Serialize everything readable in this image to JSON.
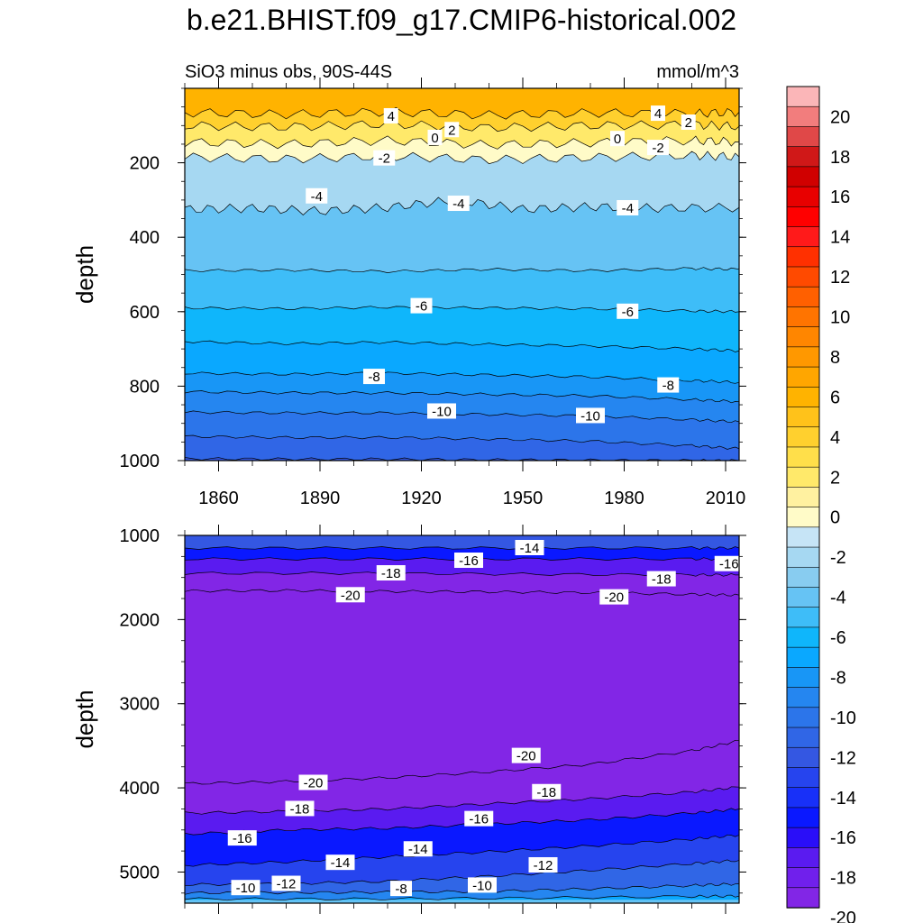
{
  "title": "b.e21.BHIST.f09_g17.CMIP6-historical.002",
  "chart_data": {
    "type": "contour",
    "title": "b.e21.BHIST.f09_g17.CMIP6-historical.002",
    "subtitle_left": "SiO3 minus obs, 90S-44S",
    "subtitle_right": "mmol/m^3",
    "xlabel": "",
    "xlim": [
      1850,
      2014
    ],
    "xticks": [
      1860,
      1890,
      1920,
      1950,
      1980,
      2010
    ],
    "panels": [
      {
        "name": "upper",
        "ylabel": "depth",
        "ylim": [
          0,
          1000
        ],
        "yreversed": true,
        "yticks": [
          200,
          400,
          600,
          800,
          1000
        ],
        "show_xtick_labels": true,
        "contours": [
          {
            "level": 4,
            "x": [
              1850,
              1880,
              1910,
              1940,
              1970,
              2000,
              2014
            ],
            "y": [
              65,
              70,
              63,
              72,
              66,
              68,
              64
            ]
          },
          {
            "level": 2,
            "x": [
              1850,
              1880,
              1910,
              1940,
              1970,
              2000,
              2014
            ],
            "y": [
              100,
              104,
              96,
              106,
              100,
              98,
              102
            ]
          },
          {
            "level": 0,
            "x": [
              1850,
              1880,
              1910,
              1940,
              1970,
              2000,
              2014
            ],
            "y": [
              145,
              150,
              140,
              152,
              146,
              140,
              144
            ]
          },
          {
            "level": -2,
            "x": [
              1850,
              1880,
              1910,
              1940,
              1970,
              2000,
              2014
            ],
            "y": [
              185,
              190,
              182,
              192,
              186,
              180,
              184
            ]
          },
          {
            "level": -4,
            "x": [
              1850,
              1870,
              1890,
              1910,
              1930,
              1950,
              1970,
              1990,
              2014
            ],
            "y": [
              325,
              322,
              330,
              320,
              300,
              325,
              318,
              322,
              320
            ]
          },
          {
            "level": -5,
            "x": [
              1850,
              1880,
              1910,
              1940,
              1970,
              2000,
              2014
            ],
            "y": [
              490,
              488,
              492,
              486,
              490,
              484,
              486
            ]
          },
          {
            "level": -6,
            "x": [
              1850,
              1880,
              1910,
              1940,
              1970,
              2000,
              2014
            ],
            "y": [
              590,
              592,
              588,
              590,
              592,
              598,
              600
            ]
          },
          {
            "level": -7,
            "x": [
              1850,
              1880,
              1910,
              1940,
              1970,
              2000,
              2014
            ],
            "y": [
              680,
              686,
              682,
              688,
              692,
              700,
              705
            ]
          },
          {
            "level": -8,
            "x": [
              1850,
              1880,
              1910,
              1940,
              1970,
              2000,
              2014
            ],
            "y": [
              765,
              768,
              765,
              770,
              775,
              785,
              790
            ]
          },
          {
            "level": -9,
            "x": [
              1850,
              1880,
              1910,
              1940,
              1970,
              2000,
              2014
            ],
            "y": [
              815,
              818,
              818,
              822,
              826,
              836,
              842
            ]
          },
          {
            "level": -10,
            "x": [
              1850,
              1880,
              1910,
              1940,
              1970,
              2000,
              2014
            ],
            "y": [
              870,
              872,
              872,
              876,
              880,
              890,
              896
            ]
          },
          {
            "level": -11,
            "x": [
              1850,
              1880,
              1910,
              1940,
              1970,
              2000,
              2014
            ],
            "y": [
              935,
              938,
              938,
              942,
              948,
              960,
              968
            ]
          },
          {
            "level": -12,
            "x": [
              1850,
              1880,
              1910,
              1940,
              1970,
              2000,
              2014
            ],
            "y": [
              995,
              996,
              996,
              998,
              999,
              1000,
              1000
            ]
          }
        ],
        "labels": [
          {
            "text": "4",
            "x": 1911,
            "y": 75
          },
          {
            "text": "2",
            "x": 1929,
            "y": 112
          },
          {
            "text": "0",
            "x": 1924,
            "y": 133
          },
          {
            "text": "-2",
            "x": 1909,
            "y": 188
          },
          {
            "text": "-4",
            "x": 1889,
            "y": 290
          },
          {
            "text": "-4",
            "x": 1931,
            "y": 310
          },
          {
            "text": "4",
            "x": 1990,
            "y": 68
          },
          {
            "text": "2",
            "x": 1999,
            "y": 92
          },
          {
            "text": "0",
            "x": 1978,
            "y": 136
          },
          {
            "text": "-2",
            "x": 1990,
            "y": 160
          },
          {
            "text": "-4",
            "x": 1981,
            "y": 322
          },
          {
            "text": "-6",
            "x": 1920,
            "y": 585
          },
          {
            "text": "-6",
            "x": 1981,
            "y": 600
          },
          {
            "text": "-8",
            "x": 1906,
            "y": 775
          },
          {
            "text": "-8",
            "x": 1993,
            "y": 798
          },
          {
            "text": "-10",
            "x": 1926,
            "y": 868
          },
          {
            "text": "-10",
            "x": 1970,
            "y": 880
          }
        ]
      },
      {
        "name": "lower",
        "ylabel": "depth",
        "ylim": [
          1000,
          5370
        ],
        "yreversed": true,
        "yticks": [
          1000,
          2000,
          3000,
          4000,
          5000
        ],
        "show_xtick_labels": false,
        "contours": [
          {
            "level": -14,
            "x": [
              1850,
              1900,
              1950,
              2000,
              2014
            ],
            "y": [
              1150,
              1150,
              1150,
              1150,
              1150
            ]
          },
          {
            "level": -16,
            "x": [
              1850,
              1900,
              1950,
              2000,
              2014
            ],
            "y": [
              1280,
              1280,
              1280,
              1280,
              1280
            ]
          },
          {
            "level": -18,
            "x": [
              1850,
              1900,
              1950,
              2000,
              2014
            ],
            "y": [
              1450,
              1450,
              1460,
              1470,
              1470
            ]
          },
          {
            "level": -20,
            "x": [
              1850,
              1880,
              1910,
              1940,
              1970,
              2000,
              2014
            ],
            "y": [
              1660,
              1655,
              1665,
              1670,
              1680,
              1700,
              1710
            ]
          },
          {
            "level": -20,
            "x": [
              1850,
              1880,
              1910,
              1940,
              1970,
              2000,
              2014
            ],
            "y": [
              3950,
              3925,
              3880,
              3810,
              3720,
              3560,
              3440
            ]
          },
          {
            "level": -18,
            "x": [
              1850,
              1880,
              1910,
              1940,
              1970,
              2000,
              2014
            ],
            "y": [
              4300,
              4280,
              4250,
              4190,
              4130,
              4050,
              3990
            ]
          },
          {
            "level": -16,
            "x": [
              1850,
              1880,
              1910,
              1940,
              1970,
              2000,
              2014
            ],
            "y": [
              4550,
              4500,
              4480,
              4430,
              4380,
              4300,
              4250
            ]
          },
          {
            "level": -14,
            "x": [
              1850,
              1880,
              1910,
              1940,
              1970,
              2000,
              2014
            ],
            "y": [
              4920,
              4880,
              4820,
              4760,
              4690,
              4610,
              4560
            ]
          },
          {
            "level": -12,
            "x": [
              1850,
              1880,
              1910,
              1940,
              1970,
              2000,
              2014
            ],
            "y": [
              5150,
              5140,
              5110,
              5050,
              4980,
              4900,
              4860
            ]
          },
          {
            "level": -10,
            "x": [
              1850,
              1880,
              1910,
              1940,
              1970,
              2000,
              2014
            ],
            "y": [
              5250,
              5245,
              5240,
              5230,
              5200,
              5160,
              5140
            ]
          },
          {
            "level": -8,
            "x": [
              1850,
              1900,
              1950,
              2000,
              2014
            ],
            "y": [
              5320,
              5320,
              5310,
              5290,
              5285
            ]
          }
        ],
        "labels": [
          {
            "text": "-14",
            "x": 1952,
            "y": 1150
          },
          {
            "text": "-16",
            "x": 1934,
            "y": 1300
          },
          {
            "text": "-18",
            "x": 1911,
            "y": 1450
          },
          {
            "text": "-20",
            "x": 1899,
            "y": 1710
          },
          {
            "text": "-16",
            "x": 2011,
            "y": 1340
          },
          {
            "text": "-18",
            "x": 1991,
            "y": 1520
          },
          {
            "text": "-20",
            "x": 1977,
            "y": 1735
          },
          {
            "text": "-20",
            "x": 1888,
            "y": 3940
          },
          {
            "text": "-20",
            "x": 1951,
            "y": 3620
          },
          {
            "text": "-18",
            "x": 1884,
            "y": 4250
          },
          {
            "text": "-18",
            "x": 1957,
            "y": 4050
          },
          {
            "text": "-16",
            "x": 1867,
            "y": 4600
          },
          {
            "text": "-16",
            "x": 1937,
            "y": 4370
          },
          {
            "text": "-14",
            "x": 1896,
            "y": 4890
          },
          {
            "text": "-14",
            "x": 1919,
            "y": 4730
          },
          {
            "text": "-12",
            "x": 1956,
            "y": 4920
          },
          {
            "text": "-12",
            "x": 1880,
            "y": 5140
          },
          {
            "text": "-10",
            "x": 1868,
            "y": 5190
          },
          {
            "text": "-10",
            "x": 1938,
            "y": 5160
          },
          {
            "text": "-8",
            "x": 1914,
            "y": 5200
          }
        ]
      }
    ],
    "colorbar": {
      "tick_labels": [
        "20",
        "18",
        "16",
        "14",
        "12",
        "10",
        "8",
        "6",
        "4",
        "2",
        "0",
        "-2",
        "-4",
        "-6",
        "-8",
        "-10",
        "-12",
        "-14",
        "-16",
        "-18",
        "-20"
      ],
      "bins_top_to_bottom": [
        {
          "label_value": 21,
          "color": "#FBB6B8"
        },
        {
          "label_value": 20,
          "color": "#F27D7D"
        },
        {
          "label_value": 19,
          "color": "#E04848"
        },
        {
          "label_value": 18,
          "color": "#D01818"
        },
        {
          "label_value": 17,
          "color": "#D00000"
        },
        {
          "label_value": 16,
          "color": "#E80000"
        },
        {
          "label_value": 15,
          "color": "#FF0000"
        },
        {
          "label_value": 14,
          "color": "#FF1A1A"
        },
        {
          "label_value": 13,
          "color": "#FF3000"
        },
        {
          "label_value": 12,
          "color": "#FF4A00"
        },
        {
          "label_value": 11,
          "color": "#FF6000"
        },
        {
          "label_value": 10,
          "color": "#FF7400"
        },
        {
          "label_value": 9,
          "color": "#FF8600"
        },
        {
          "label_value": 8,
          "color": "#FF9800"
        },
        {
          "label_value": 7,
          "color": "#FFA600"
        },
        {
          "label_value": 6,
          "color": "#FFB300"
        },
        {
          "label_value": 5,
          "color": "#FFC21A"
        },
        {
          "label_value": 4,
          "color": "#FFD02E"
        },
        {
          "label_value": 3,
          "color": "#FFDF4A"
        },
        {
          "label_value": 2,
          "color": "#FFE96A"
        },
        {
          "label_value": 1,
          "color": "#FFF1A0"
        },
        {
          "label_value": 0,
          "color": "#FFFBC8"
        },
        {
          "label_value": -1,
          "color": "#C6E4F6"
        },
        {
          "label_value": -2,
          "color": "#A6D8F2"
        },
        {
          "label_value": -3,
          "color": "#88CCF0"
        },
        {
          "label_value": -4,
          "color": "#66C3F4"
        },
        {
          "label_value": -5,
          "color": "#3EBDF8"
        },
        {
          "label_value": -6,
          "color": "#0FB6FB"
        },
        {
          "label_value": -7,
          "color": "#0AA8FF"
        },
        {
          "label_value": -8,
          "color": "#1896F6"
        },
        {
          "label_value": -9,
          "color": "#2586F0"
        },
        {
          "label_value": -10,
          "color": "#2C75EA"
        },
        {
          "label_value": -11,
          "color": "#3066E6"
        },
        {
          "label_value": -12,
          "color": "#3457E2"
        },
        {
          "label_value": -13,
          "color": "#2644EE"
        },
        {
          "label_value": -14,
          "color": "#1830F8"
        },
        {
          "label_value": -15,
          "color": "#0A18FF"
        },
        {
          "label_value": -16,
          "color": "#2A0EF8"
        },
        {
          "label_value": -17,
          "color": "#5A1BF0"
        },
        {
          "label_value": -18,
          "color": "#7020EC"
        },
        {
          "label_value": -19,
          "color": "#8226E6"
        }
      ]
    }
  }
}
